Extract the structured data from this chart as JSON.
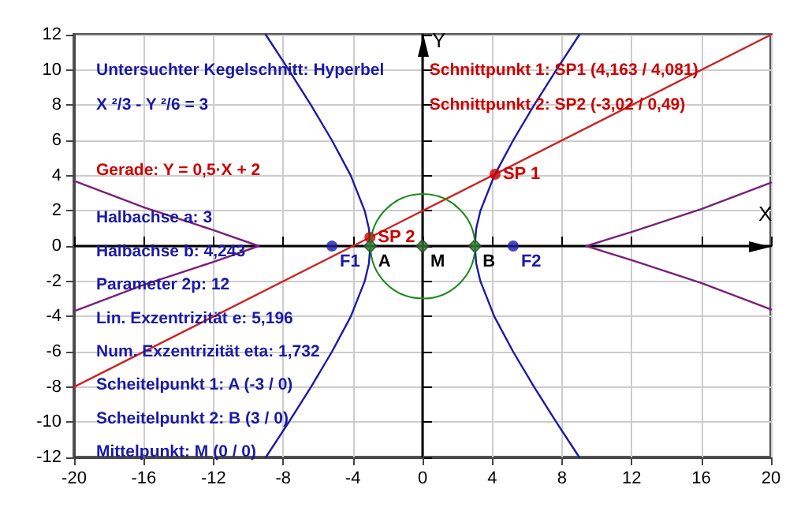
{
  "chart_data": {
    "type": "line",
    "xlabel": "X",
    "ylabel": "Y",
    "xlim": [
      -20,
      20
    ],
    "xticks": [
      -20,
      -16,
      -12,
      -8,
      -4,
      0,
      4,
      8,
      12,
      16,
      20
    ],
    "ylim": [
      -12,
      12
    ],
    "yticks": [
      -12,
      -10,
      -8,
      -6,
      -4,
      -2,
      0,
      2,
      4,
      6,
      8,
      10,
      12
    ],
    "grid": true,
    "marker": "none",
    "series": [
      {
        "color": "#1a1aa6",
        "x": [
          9,
          7.68,
          6.4,
          5.2,
          4.12,
          3.32,
          3.08,
          3,
          3.08,
          3.32,
          4.12,
          5.2,
          6.4,
          7.68,
          9
        ],
        "values": [
          12,
          10,
          8,
          6,
          4,
          2,
          1,
          0,
          -1,
          -2,
          -4,
          -6,
          -8,
          -10,
          -12
        ]
      },
      {
        "color": "#1a1aa6",
        "x": [
          -9,
          -7.68,
          -6.4,
          -5.2,
          -4.12,
          -3.32,
          -3.08,
          -3,
          -3.08,
          -3.32,
          -4.12,
          -5.2,
          -6.4,
          -7.68,
          -9
        ],
        "values": [
          12,
          10,
          8,
          6,
          4,
          2,
          1,
          0,
          -1,
          -2,
          -4,
          -6,
          -8,
          -10,
          -12
        ]
      },
      {
        "color": "#cc2222",
        "x": [
          -20,
          20
        ],
        "values": [
          -8,
          12
        ]
      },
      {
        "color": "#7a1f7a",
        "x": [
          -20,
          -16,
          -12,
          -9.4,
          -12,
          -16,
          -20
        ],
        "values": [
          3.7,
          2.2,
          0.9,
          0,
          -0.9,
          -2.2,
          -3.7
        ]
      },
      {
        "color": "#7a1f7a",
        "x": [
          20,
          16,
          12,
          9.4,
          12,
          16,
          20
        ],
        "values": [
          3.6,
          2.1,
          0.8,
          0,
          -0.8,
          -2.1,
          -3.6
        ]
      },
      {
        "type": "scatter",
        "marker": "circle",
        "color": "#cc0000",
        "x": [
          4.16,
          -3.02
        ],
        "values": [
          4.08,
          0.49
        ]
      },
      {
        "type": "scatter",
        "marker": "circle",
        "color": "#1a1aa6",
        "x": [
          -5.2,
          5.2
        ],
        "values": [
          0,
          0
        ]
      },
      {
        "type": "scatter",
        "marker": "diamond",
        "color": "#2e7d2e",
        "x": [
          -3,
          3,
          0
        ],
        "values": [
          0,
          0,
          0
        ]
      }
    ],
    "annotations": [
      "Untersuchter Kegelschnitt: Hyperbel",
      "X ²/3 - Y ²/6 = 3",
      "Gerade: Y = 0,5·X + 2",
      "Schnittpunkt 1: SP1 (4,163 / 4,081)",
      "Schnittpunkt 2: SP2 (-3,02 / 0,49)",
      "Halbachse a: 3",
      "Halbachse b: 4,243",
      "Parameter 2p: 12",
      "Lin. Exzentrizität e: 5,196",
      "Num. Exzentrizität eta: 1,732",
      "Scheitelpunkt 1: A (-3 / 0)",
      "Scheitelpunkt 2: B (3 / 0)",
      "Mittelpunkt: M (0 / 0)",
      {
        "text": "SP 1",
        "x": 4.16,
        "y": 4.08
      },
      {
        "text": "SP 2",
        "x": -3.02,
        "y": 0.49
      },
      {
        "text": "F1",
        "x": -5.2,
        "y": 0
      },
      {
        "text": "F2",
        "x": 5.2,
        "y": 0
      },
      {
        "text": "A",
        "x": -3,
        "y": 0
      },
      {
        "text": "B",
        "x": 3,
        "y": 0
      },
      {
        "text": "M",
        "x": 0,
        "y": 0
      }
    ]
  }
}
